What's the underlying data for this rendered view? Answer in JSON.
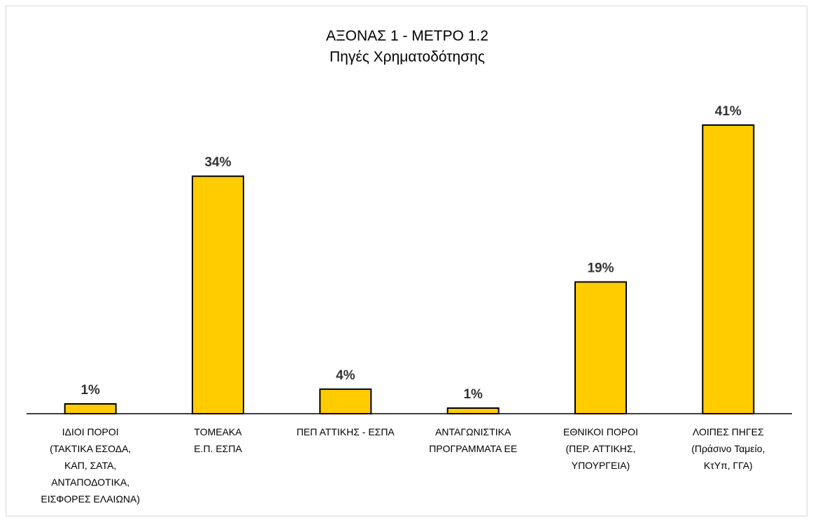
{
  "chart_data": {
    "type": "bar",
    "title": [
      "ΑΞΟΝΑΣ 1 - ΜΕΤΡΟ 1.2",
      "Πηγές Χρηματοδότησης"
    ],
    "categories": [
      [
        "ΙΔΙΟΙ ΠΟΡΟΙ",
        "(ΤΑΚΤΙΚΑ ΕΣΟΔΑ,",
        "ΚΑΠ,  ΣΑΤΑ,",
        "ΑΝΤΑΠΟΔΟΤΙΚΑ,",
        "ΕΙΣΦΟΡΕΣ ΕΛΑΙΩΝΑ)"
      ],
      [
        "ΤΟΜΕΑΚΑ",
        "Ε.Π. ΕΣΠΑ"
      ],
      [
        "ΠΕΠ ΑΤΤΙΚΗΣ - ΕΣΠΑ"
      ],
      [
        "ΑΝΤΑΓΩΝΙΣΤΙΚΑ",
        "ΠΡΟΓΡΑΜΜΑΤΑ ΕΕ"
      ],
      [
        "ΕΘΝΙΚΟΙ ΠΟΡΟΙ",
        "(ΠΕΡ. ΑΤΤΙΚΗΣ,",
        "ΥΠΟΥΡΓΕΙΑ)"
      ],
      [
        "ΛΟΙΠΕΣ ΠΗΓΕΣ",
        "(Πράσινο Ταμείο,",
        "ΚτΥπ, ΓΓΑ)"
      ]
    ],
    "values": [
      1.4,
      33.9,
      3.5,
      0.8,
      18.8,
      41.2
    ],
    "data_labels": [
      "1%",
      "34%",
      "4%",
      "1%",
      "19%",
      "41%"
    ],
    "ylim": [
      0,
      41.2
    ],
    "grid": false,
    "legend": "none",
    "colors": {
      "bar_fill": "#ffcc00",
      "bar_stroke": "#000000",
      "axis": "#000000",
      "label": "#333333"
    }
  }
}
